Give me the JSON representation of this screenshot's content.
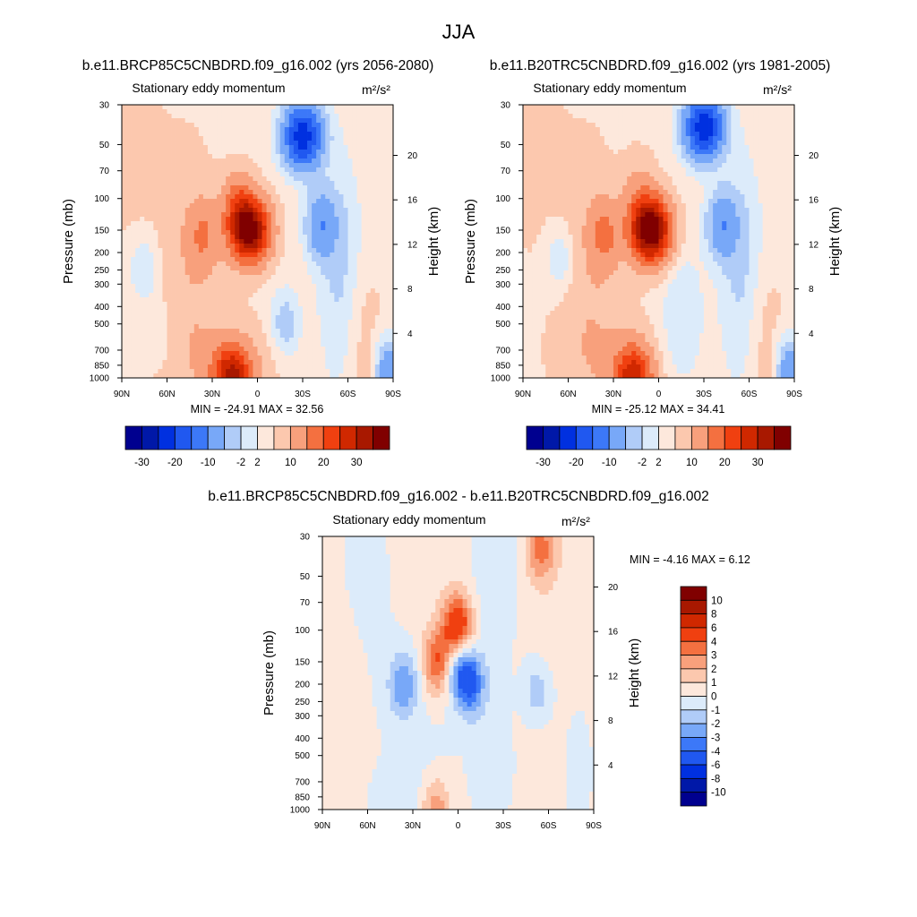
{
  "figure": {
    "title": "JJA",
    "diff_minmax_label": "MIN =  -4.16  MAX =   6.12"
  },
  "chart_data": [
    {
      "type": "heatmap",
      "title": "b.e11.BRCP85C5CNBDRD.f09_g16.002 (yrs 2056-2080)",
      "subtitle": "Stationary eddy momentum",
      "units": "m²/s²",
      "xlabel": "",
      "ylabel": "Pressure (mb)",
      "ylabel_right": "Height (km)",
      "x_ticks": [
        "90N",
        "60N",
        "30N",
        "0",
        "30S",
        "60S",
        "90S"
      ],
      "y_ticks": [
        "30",
        "50",
        "70",
        "100",
        "150",
        "200",
        "250",
        "300",
        "400",
        "500",
        "700",
        "850",
        "1000"
      ],
      "y_ticks_right": [
        "20",
        "16",
        "12",
        "8",
        "4"
      ],
      "xlim": [
        90,
        -90
      ],
      "ylim": [
        1000,
        30
      ],
      "min": -24.91,
      "max": 32.56,
      "minmax_label": "MIN = -24.91  MAX =  32.56",
      "contour_levels": [
        -30,
        -25,
        -20,
        -15,
        -10,
        -5,
        -2,
        0,
        2,
        5,
        10,
        15,
        20,
        25,
        30
      ],
      "colorbar_labels": [
        "-30",
        "-20",
        "-10",
        "-2",
        "2",
        "10",
        "20",
        "30"
      ],
      "features": [
        {
          "lat": 5,
          "p": 150,
          "value": 32.56
        },
        {
          "lat": 13,
          "p": 110,
          "value": 10
        },
        {
          "lat": 36,
          "p": 160,
          "value": 8
        },
        {
          "lat": 17,
          "p": 990,
          "value": 25
        },
        {
          "lat": -30,
          "p": 45,
          "value": -24.91
        },
        {
          "lat": -42,
          "p": 140,
          "value": -10
        },
        {
          "lat": -18,
          "p": 500,
          "value": -5
        },
        {
          "lat": 75,
          "p": 250,
          "value": -4
        },
        {
          "lat": -86,
          "p": 980,
          "value": -12
        }
      ]
    },
    {
      "type": "heatmap",
      "title": "b.e11.B20TRC5CNBDRD.f09_g16.002 (yrs 1981-2005)",
      "subtitle": "Stationary eddy momentum",
      "units": "m²/s²",
      "xlabel": "",
      "ylabel": "Pressure (mb)",
      "ylabel_right": "Height (km)",
      "x_ticks": [
        "90N",
        "60N",
        "30N",
        "0",
        "30S",
        "60S",
        "90S"
      ],
      "y_ticks": [
        "30",
        "50",
        "70",
        "100",
        "150",
        "200",
        "250",
        "300",
        "400",
        "500",
        "700",
        "850",
        "1000"
      ],
      "y_ticks_right": [
        "20",
        "16",
        "12",
        "8",
        "4"
      ],
      "xlim": [
        90,
        -90
      ],
      "ylim": [
        1000,
        30
      ],
      "min": -25.12,
      "max": 34.41,
      "minmax_label": "MIN = -25.12  MAX =  34.41",
      "contour_levels": [
        -30,
        -25,
        -20,
        -15,
        -10,
        -5,
        -2,
        0,
        2,
        5,
        10,
        15,
        20,
        25,
        30
      ],
      "colorbar_labels": [
        "-30",
        "-20",
        "-10",
        "-2",
        "2",
        "10",
        "20",
        "30"
      ],
      "features": [
        {
          "lat": 5,
          "p": 150,
          "value": 34.41
        },
        {
          "lat": 36,
          "p": 160,
          "value": 9
        },
        {
          "lat": 17,
          "p": 990,
          "value": 22
        },
        {
          "lat": -30,
          "p": 40,
          "value": -25.12
        },
        {
          "lat": -42,
          "p": 140,
          "value": -10
        },
        {
          "lat": 65,
          "p": 220,
          "value": -4
        },
        {
          "lat": -86,
          "p": 980,
          "value": -12
        }
      ]
    },
    {
      "type": "heatmap",
      "title": "b.e11.BRCP85C5CNBDRD.f09_g16.002 - b.e11.B20TRC5CNBDRD.f09_g16.002",
      "subtitle": "Stationary eddy momentum",
      "units": "m²/s²",
      "xlabel": "",
      "ylabel": "Pressure (mb)",
      "ylabel_right": "Height (km)",
      "x_ticks": [
        "90N",
        "60N",
        "30N",
        "0",
        "30S",
        "60S",
        "90S"
      ],
      "y_ticks": [
        "30",
        "50",
        "70",
        "100",
        "150",
        "200",
        "250",
        "300",
        "400",
        "500",
        "700",
        "850",
        "1000"
      ],
      "y_ticks_right": [
        "20",
        "16",
        "12",
        "8",
        "4"
      ],
      "xlim": [
        90,
        -90
      ],
      "ylim": [
        1000,
        30
      ],
      "min": -4.16,
      "max": 6.12,
      "contour_levels": [
        -10,
        -8,
        -6,
        -4,
        -3,
        -2,
        -1,
        0,
        1,
        2,
        3,
        4,
        6,
        8,
        10
      ],
      "colorbar_labels": [
        "10",
        "8",
        "6",
        "4",
        "3",
        "2",
        "1",
        "0",
        "-1",
        "-2",
        "-3",
        "-4",
        "-6",
        "-8",
        "-10"
      ],
      "features": [
        {
          "lat": 0,
          "p": 100,
          "value": 6.12
        },
        {
          "lat": 13,
          "p": 150,
          "value": 4
        },
        {
          "lat": -55,
          "p": 35,
          "value": 3
        },
        {
          "lat": 15,
          "p": 990,
          "value": 3
        },
        {
          "lat": 0,
          "p": 150,
          "value": -4.16
        },
        {
          "lat": -8,
          "p": 200,
          "value": -4
        },
        {
          "lat": 36,
          "p": 200,
          "value": -3
        },
        {
          "lat": -52,
          "p": 220,
          "value": -2
        }
      ]
    }
  ],
  "colors": {
    "negative": [
      "#00008f",
      "#0018a8",
      "#0030e0",
      "#2058f0",
      "#3c78f8",
      "#78a8f8",
      "#b0ccf8",
      "#dcebfa"
    ],
    "positive": [
      "#fde8dc",
      "#fcc8ae",
      "#f8a07c",
      "#f47040",
      "#f04010",
      "#d02800",
      "#a81800",
      "#800000"
    ]
  }
}
